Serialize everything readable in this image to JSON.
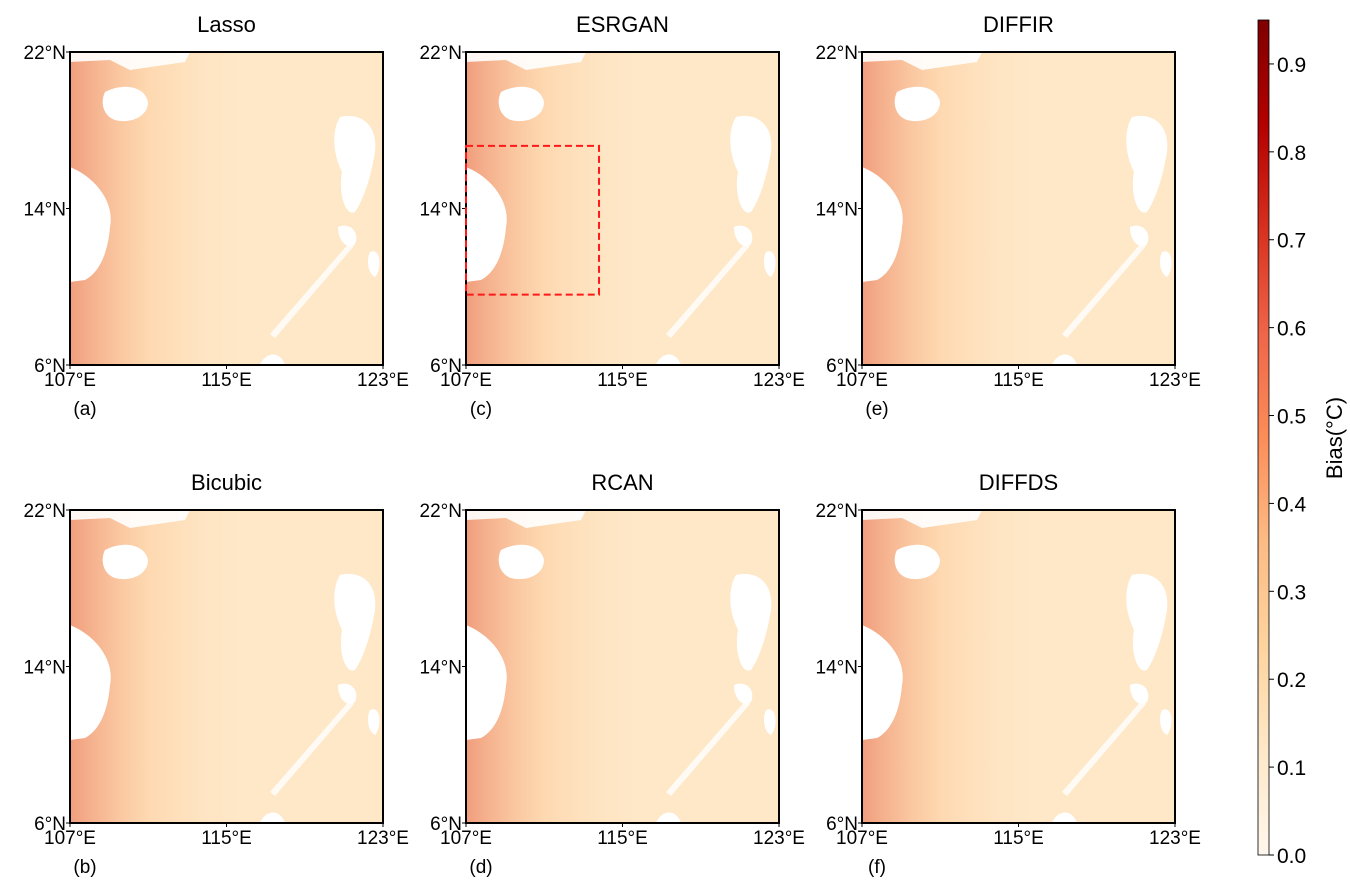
{
  "map_axes": {
    "xlim": [
      107,
      123
    ],
    "ylim": [
      6,
      22
    ],
    "xticks": [
      {
        "value": 107,
        "label": "107°E"
      },
      {
        "value": 115,
        "label": "115°E"
      },
      {
        "value": 123,
        "label": "123°E"
      }
    ],
    "yticks": [
      {
        "value": 6,
        "label": "6°N"
      },
      {
        "value": 14,
        "label": "14°N"
      },
      {
        "value": 22,
        "label": "22°N"
      }
    ]
  },
  "panels": [
    {
      "title": "Lasso",
      "label": "(a)"
    },
    {
      "title": "ESRGAN",
      "label": "(c)",
      "box": {
        "x": [
          107,
          113.8
        ],
        "y": [
          9.6,
          17.2
        ],
        "color": "#ff1a1a"
      }
    },
    {
      "title": "DIFFIR",
      "label": "(e)"
    },
    {
      "title": "Bicubic",
      "label": "(b)"
    },
    {
      "title": "RCAN",
      "label": "(d)"
    },
    {
      "title": "DIFFDS",
      "label": "(f)"
    }
  ],
  "colorbar": {
    "label": "Bias(°C)",
    "lim": [
      0,
      0.95
    ],
    "ticks": [
      {
        "value": 0,
        "label": "0.0"
      },
      {
        "value": 0.1,
        "label": "0.1"
      },
      {
        "value": 0.2,
        "label": "0.2"
      },
      {
        "value": 0.3,
        "label": "0.3"
      },
      {
        "value": 0.4,
        "label": "0.4"
      },
      {
        "value": 0.5,
        "label": "0.5"
      },
      {
        "value": 0.6,
        "label": "0.6"
      },
      {
        "value": 0.7,
        "label": "0.7"
      },
      {
        "value": 0.8,
        "label": "0.8"
      },
      {
        "value": 0.9,
        "label": "0.9"
      }
    ],
    "colors": [
      "#fff7ec",
      "#fee8c8",
      "#fdd49e",
      "#fdbb84",
      "#fc8d59",
      "#ef6548",
      "#d7301f",
      "#b30000",
      "#7f0000"
    ]
  }
}
